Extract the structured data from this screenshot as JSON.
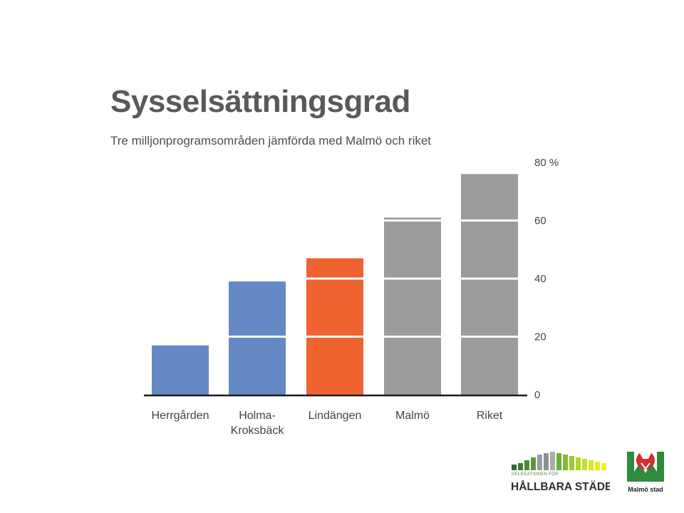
{
  "title": "Sysselsättningsgrad",
  "subtitle": "Tre milljonprogramsområden jämförda med Malmö och riket",
  "chart_data": {
    "type": "bar",
    "title": "Sysselsättningsgrad",
    "subtitle": "Tre milljonprogramsområden jämförda med Malmö och riket",
    "categories": [
      "Herrgården",
      "Holma-\nKroksbäck",
      "Lindängen",
      "Malmö",
      "Riket"
    ],
    "values": [
      17,
      39,
      47,
      61,
      76
    ],
    "bar_colors": [
      "#6589c4",
      "#6589c4",
      "#ef6331",
      "#9b9c9e",
      "#9b9c9e"
    ],
    "y_unit": "%",
    "ylim": [
      0,
      80
    ],
    "yticks": [
      0,
      20,
      40,
      60,
      80
    ],
    "ytick_labels": [
      "0",
      "20",
      "40",
      "60",
      "80 %"
    ],
    "y_axis_side": "right",
    "gridlines": "white lines across bars at each tick"
  },
  "logos": {
    "hallbara": {
      "line1": "DELEGATIONEN FÖR",
      "line2": "HÅLLBARA STÄDER"
    },
    "malmo": {
      "label": "Malmö stad"
    }
  }
}
